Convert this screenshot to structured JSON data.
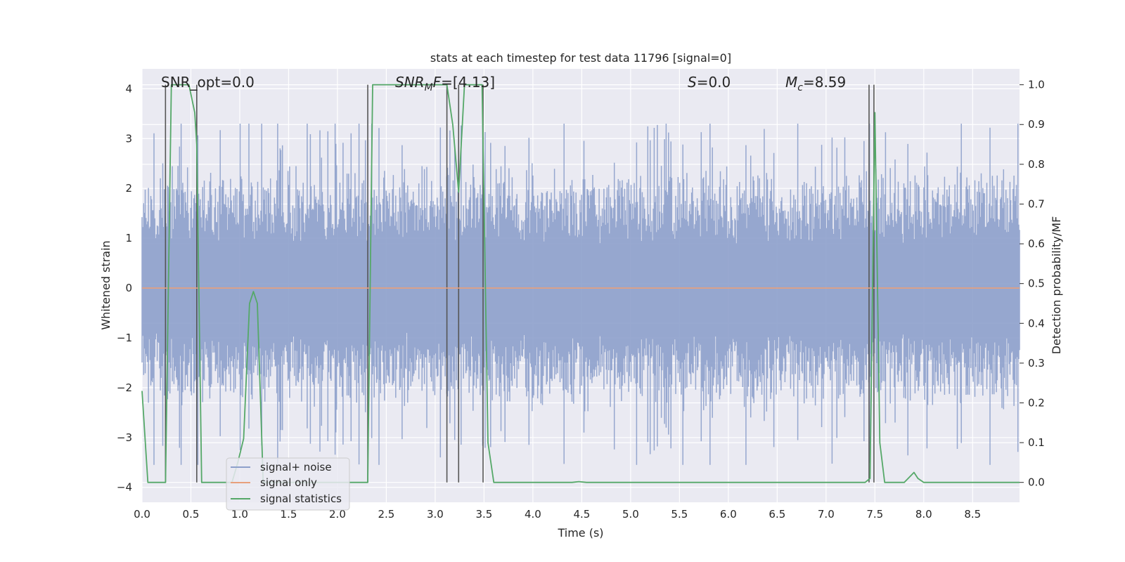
{
  "chart_data": {
    "type": "line",
    "title": "stats at each timestep for test data 11796 [signal=0]",
    "xlabel": "Time (s)",
    "ylabel": "Whitened strain",
    "ylabel_right": "Detection probability/MF",
    "xlim": [
      0.0,
      8.98
    ],
    "ylim": [
      -4.3,
      4.4
    ],
    "ylim_right": [
      -0.05,
      1.04
    ],
    "x_ticks": [
      "0.0",
      "0.5",
      "1.0",
      "1.5",
      "2.0",
      "2.5",
      "3.0",
      "3.5",
      "4.0",
      "4.5",
      "5.0",
      "5.5",
      "6.0",
      "6.5",
      "7.0",
      "7.5",
      "8.0",
      "8.5"
    ],
    "y_ticks": [
      "4",
      "3",
      "2",
      "1",
      "0",
      "−1",
      "−2",
      "−3",
      "−4"
    ],
    "y_ticks_right": [
      "1.0",
      "0.9",
      "0.8",
      "0.7",
      "0.6",
      "0.5",
      "0.4",
      "0.3",
      "0.2",
      "0.1",
      "0.0"
    ],
    "grid": true,
    "legend_position": "lower-left",
    "annotations": {
      "snr_opt": "SNR_opt=0.0",
      "snr_mf": "=[4.13]",
      "snr_mf_symbol": "SNR",
      "snr_mf_sub": "M",
      "snr_mf_suffix": "F",
      "s_label": "S",
      "s_value": "=0.0",
      "mc_symbol": "M",
      "mc_sub": "c",
      "mc_value": "=8.59"
    },
    "series": [
      {
        "name": "signal+ noise",
        "color": "#8da0cb",
        "axis": "left",
        "envelope": {
          "typical_abs": 1.9,
          "peak_abs": 3.4,
          "min": -3.55,
          "max": 3.3
        }
      },
      {
        "name": "signal only",
        "color": "#e8a07c",
        "axis": "left",
        "x": [
          0.0,
          8.98
        ],
        "y": [
          0.0,
          0.0
        ]
      },
      {
        "name": "signal statistics",
        "color": "#55a868",
        "axis": "right",
        "x": [
          0.0,
          0.06,
          0.12,
          0.18,
          0.24,
          0.3,
          0.36,
          0.42,
          0.48,
          0.54,
          0.56,
          0.61,
          0.68,
          0.74,
          0.8,
          0.86,
          0.92,
          0.98,
          1.04,
          1.1,
          1.14,
          1.18,
          1.24,
          1.3,
          1.36,
          1.42,
          1.48,
          1.54,
          1.6,
          1.66,
          1.72,
          1.78,
          1.84,
          1.9,
          1.96,
          2.02,
          2.08,
          2.14,
          2.2,
          2.26,
          2.31,
          2.36,
          2.4,
          2.46,
          2.52,
          2.58,
          2.64,
          2.7,
          2.76,
          2.82,
          2.88,
          2.94,
          3.0,
          3.06,
          3.12,
          3.18,
          3.24,
          3.3,
          3.36,
          3.42,
          3.48,
          3.54,
          3.6,
          3.66,
          3.72,
          3.9,
          4.2,
          4.4,
          4.47,
          4.55,
          4.7,
          5.0,
          5.5,
          6.0,
          6.5,
          7.0,
          7.2,
          7.4,
          7.45,
          7.5,
          7.55,
          7.6,
          7.7,
          7.8,
          7.9,
          7.94,
          8.0,
          8.06,
          8.2,
          8.5,
          8.98
        ],
        "y": [
          0.23,
          0.0,
          0.0,
          0.0,
          0.0,
          1.0,
          1.0,
          1.0,
          1.0,
          0.93,
          0.85,
          0.0,
          0.0,
          0.0,
          0.0,
          0.0,
          0.0,
          0.05,
          0.11,
          0.45,
          0.48,
          0.45,
          0.0,
          0.0,
          0.0,
          0.0,
          0.0,
          0.0,
          0.0,
          0.0,
          0.0,
          0.0,
          0.0,
          0.0,
          0.0,
          0.0,
          0.0,
          0.0,
          0.0,
          0.0,
          0.0,
          1.0,
          1.0,
          1.0,
          1.0,
          1.0,
          1.0,
          1.0,
          1.0,
          1.0,
          1.0,
          1.0,
          1.0,
          1.0,
          1.0,
          0.9,
          0.73,
          1.0,
          1.0,
          1.0,
          1.0,
          0.1,
          0.0,
          0.0,
          0.0,
          0.0,
          0.0,
          0.0,
          0.002,
          0.0,
          0.0,
          0.0,
          0.0,
          0.0,
          0.0,
          0.0,
          0.0,
          0.0,
          0.01,
          0.93,
          0.1,
          0.0,
          0.0,
          0.0,
          0.025,
          0.01,
          0.0,
          0.0,
          0.0,
          0.0,
          0.0
        ]
      }
    ],
    "vertical_markers_x": [
      0.24,
      0.56,
      2.31,
      3.12,
      3.24,
      3.49,
      7.44,
      7.49
    ]
  }
}
